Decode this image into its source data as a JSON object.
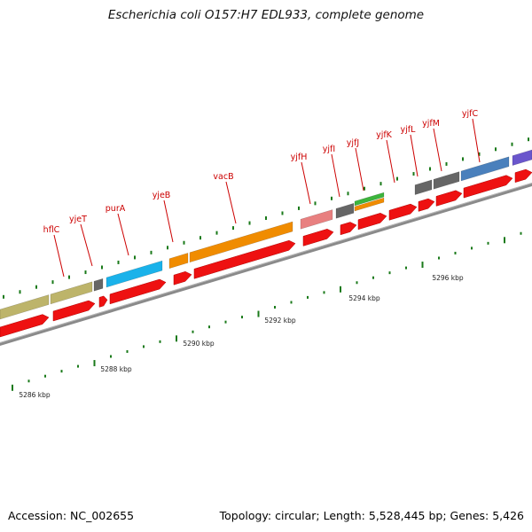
{
  "header": {
    "title": "Escherichia coli O157:H7 EDL933, complete genome"
  },
  "footer": {
    "accession": "Accession: NC_002655",
    "summary": "Topology: circular; Length: 5,528,445 bp; Genes: 5,426"
  },
  "colors": {
    "label": "#cc0000",
    "tick": "#1a7a1a",
    "backbone": "#8a8a8a",
    "cds": "#ee1111",
    "khaki": "#bdb46a",
    "gray_gene": "#666666",
    "cyan_gene": "#1ab2ea",
    "orange_gene": "#f08c00",
    "pink_gene": "#e88080",
    "green_gene": "#3cb43c",
    "steelblue_gene": "#4a80bc",
    "purple_gene": "#6a56cc"
  },
  "genes": [
    {
      "name": "hflC"
    },
    {
      "name": "yjeT"
    },
    {
      "name": "purA"
    },
    {
      "name": "yjeB"
    },
    {
      "name": "vacB"
    },
    {
      "name": "yjfH"
    },
    {
      "name": "yjfI"
    },
    {
      "name": "yjfJ"
    },
    {
      "name": "yjfK"
    },
    {
      "name": "yjfL"
    },
    {
      "name": "yjfM"
    },
    {
      "name": "yjfC"
    }
  ],
  "scale_labels": [
    {
      "text": "5286 kbp"
    },
    {
      "text": "5288 kbp"
    },
    {
      "text": "5290 kbp"
    },
    {
      "text": "5292 kbp"
    },
    {
      "text": "5294 kbp"
    },
    {
      "text": "5296 kbp"
    }
  ]
}
